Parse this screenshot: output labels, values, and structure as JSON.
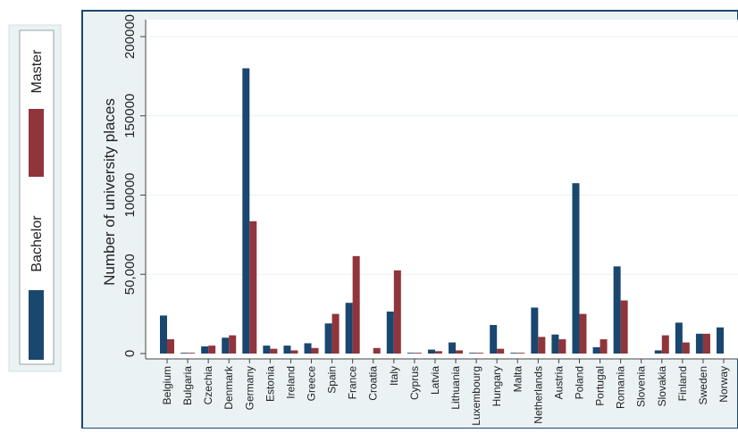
{
  "chart_data": {
    "type": "bar",
    "ylabel": "Number of university places",
    "ylim": [
      0,
      210000
    ],
    "yticks": [
      {
        "value": 0,
        "label": "0"
      },
      {
        "value": 50000,
        "label": "50,000"
      },
      {
        "value": 100000,
        "label": "100000"
      },
      {
        "value": 150000,
        "label": "150000"
      },
      {
        "value": 200000,
        "label": "200000"
      }
    ],
    "categories": [
      "Belgium",
      "Bulgaria",
      "Czechia",
      "Denmark",
      "Germany",
      "Estonia",
      "Ireland",
      "Greece",
      "Spain",
      "France",
      "Croatia",
      "Italy",
      "Cyprus",
      "Latvia",
      "Lithuania",
      "Luxembourg",
      "Hungary",
      "Malta",
      "Netherlands",
      "Austria",
      "Poland",
      "Portugal",
      "Romania",
      "Slovenia",
      "Slovakia",
      "Finland",
      "Sweden",
      "Norway"
    ],
    "series": [
      {
        "name": "Bachelor",
        "color": "#1a476f",
        "values": [
          24000,
          500,
          4500,
          10000,
          180000,
          5000,
          5000,
          6500,
          19000,
          32000,
          0,
          26500,
          500,
          2500,
          7000,
          500,
          18000,
          500,
          29000,
          12000,
          107500,
          4000,
          55000,
          0,
          2000,
          19500,
          12500,
          16500
        ]
      },
      {
        "name": "Master",
        "color": "#90353b",
        "values": [
          9000,
          500,
          5000,
          11500,
          83500,
          3000,
          2000,
          3500,
          25000,
          61500,
          3500,
          52500,
          500,
          1500,
          2000,
          500,
          3000,
          500,
          10500,
          9000,
          25000,
          9000,
          33500,
          0,
          11500,
          7000,
          12500,
          0
        ]
      }
    ],
    "legend_position": "left",
    "grid": true
  }
}
